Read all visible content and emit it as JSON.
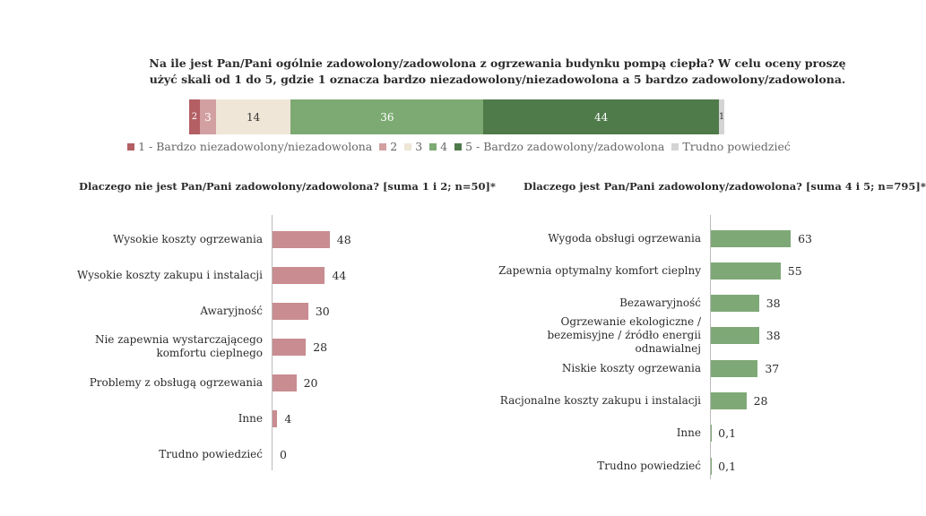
{
  "chart_data": [
    {
      "type": "bar",
      "orientation": "horizontal-stacked",
      "title": "Na ile jest Pan/Pani ogólnie zadowolony/zadowolona z ogrzewania budynku pompą ciepła? W celu oceny proszę użyć skali od 1 do 5, gdzie 1 oznacza bardzo niezadowolony/niezadowolona a 5 bardzo zadowolony/zadowolona.",
      "series": [
        {
          "name": "1 - Bardzo niezadowolony/niezadowolona",
          "value": 2,
          "label": "2",
          "color": "#b35f63"
        },
        {
          "name": "2",
          "value": 3,
          "label": "3",
          "color": "#d3a0a2"
        },
        {
          "name": "3",
          "value": 14,
          "label": "14",
          "color": "#efe6d7"
        },
        {
          "name": "4",
          "value": 36,
          "label": "36",
          "color": "#7caa72"
        },
        {
          "name": "5 - Bardzo zadowolony/zadowolona",
          "value": 44,
          "label": "44",
          "color": "#4f7a4a"
        },
        {
          "name": "Trudno powiedzieć",
          "value": 1,
          "label": "1",
          "color": "#d4d4d4"
        }
      ],
      "legend_position": "bottom"
    },
    {
      "type": "bar",
      "orientation": "horizontal",
      "title": "Dlaczego nie jest Pan/Pani zadowolony/zadowolona?  [suma 1 i 2; n=50]*",
      "color": "#c98c90",
      "categories": [
        "Wysokie koszty ogrzewania",
        "Wysokie koszty zakupu i instalacji",
        "Awaryjność",
        "Nie zapewnia wystarczającego komfortu cieplnego",
        "Problemy z obsługą ogrzewania",
        "Inne",
        "Trudno powiedzieć"
      ],
      "values": [
        48,
        44,
        30,
        28,
        20,
        4,
        0
      ],
      "value_labels": [
        "48",
        "44",
        "30",
        "28",
        "20",
        "4",
        "0"
      ],
      "xlim": [
        0,
        70
      ]
    },
    {
      "type": "bar",
      "orientation": "horizontal",
      "title": "Dlaczego jest Pan/Pani zadowolony/zadowolona? [suma 4 i 5; n=795]*",
      "color": "#7fa877",
      "categories": [
        "Wygoda obsługi ogrzewania",
        "Zapewnia optymalny komfort cieplny",
        "Bezawaryjność",
        "Ogrzewanie ekologiczne / bezemisyjne / źródło energii odnawialnej",
        "Niskie koszty ogrzewania",
        "Racjonalne koszty zakupu i instalacji",
        "Inne",
        "Trudno powiedzieć"
      ],
      "values": [
        63,
        55,
        38,
        38,
        37,
        28,
        0.1,
        0.1
      ],
      "value_labels": [
        "63",
        "55",
        "38",
        "38",
        "37",
        "28",
        "0,1",
        "0,1"
      ],
      "xlim": [
        0,
        70
      ]
    }
  ],
  "legend_items": [
    {
      "label": "1 - Bardzo niezadowolony/niezadowolona",
      "color": "#b35f63"
    },
    {
      "label": "2",
      "color": "#d3a0a2"
    },
    {
      "label": "3",
      "color": "#efe6d7"
    },
    {
      "label": "4",
      "color": "#7caa72"
    },
    {
      "label": "5 - Bardzo zadowolony/zadowolona",
      "color": "#4f7a4a"
    },
    {
      "label": "Trudno powiedzieć",
      "color": "#d4d4d4"
    }
  ]
}
